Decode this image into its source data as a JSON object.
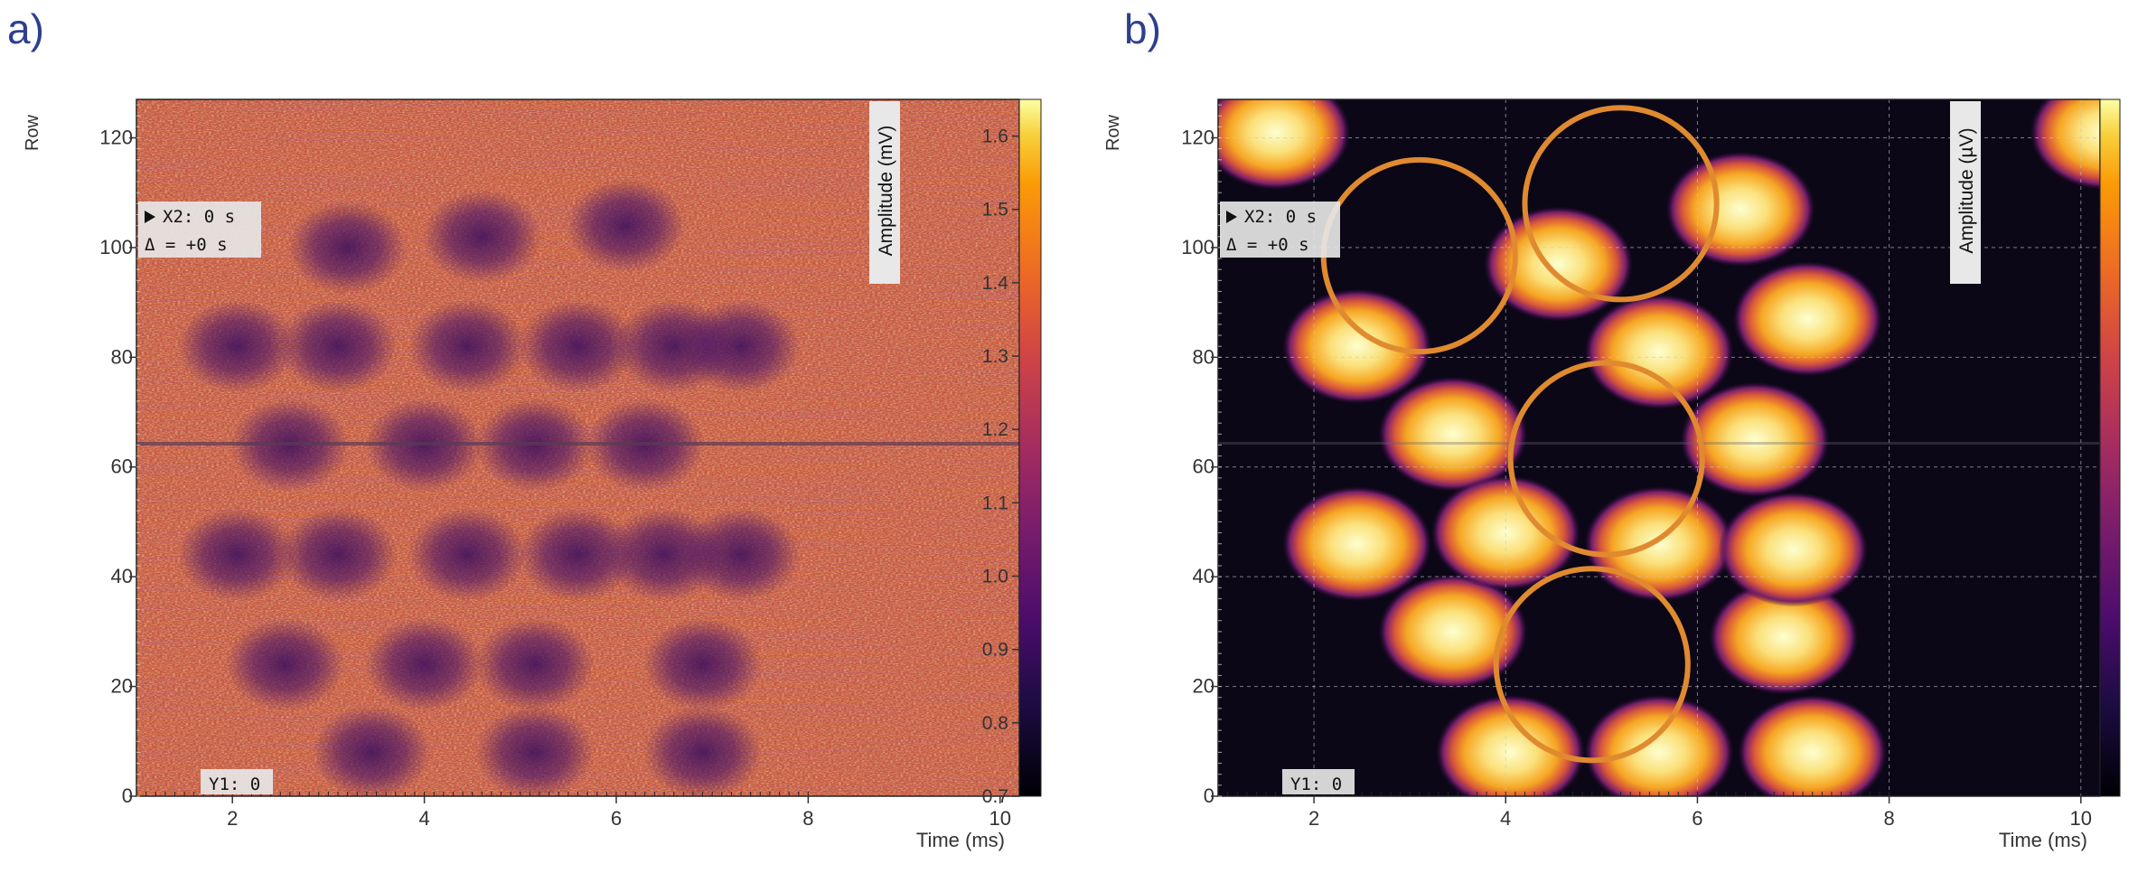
{
  "chart_data": [
    {
      "panel_label": "a)",
      "type": "heatmap",
      "xlabel": "Time (ms)",
      "ylabel": "Row",
      "colorbar_label": "Amplitude (mV)",
      "x_ticks": [
        2,
        4,
        6,
        8,
        10
      ],
      "y_ticks": [
        0,
        20,
        40,
        60,
        80,
        100,
        120
      ],
      "colorbar_ticks": [
        0.7,
        0.8,
        0.9,
        1.0,
        1.1,
        1.2,
        1.3,
        1.4,
        1.5,
        1.6
      ],
      "colorbar_tick_labels": [
        "0.7",
        "0.8",
        "0.9",
        "1.0",
        "1.1",
        "1.2",
        "1.3",
        "1.4",
        "1.5",
        "1.6"
      ],
      "xlim": [
        1,
        10.2
      ],
      "ylim": [
        0,
        127
      ],
      "zlim": [
        0.7,
        1.65
      ],
      "colormap": "inferno",
      "grid": false,
      "cursor_x_label": "X2: 0 s",
      "cursor_delta_label": "Δ = +0 s",
      "cursor_y_label": "Y1: 0",
      "spot_centers": [
        [
          6.9,
          8
        ],
        [
          5.15,
          8
        ],
        [
          3.45,
          8
        ],
        [
          2.55,
          24
        ],
        [
          4.0,
          24
        ],
        [
          5.15,
          24
        ],
        [
          6.9,
          24
        ],
        [
          2.05,
          44
        ],
        [
          3.1,
          44
        ],
        [
          4.45,
          44
        ],
        [
          5.6,
          44
        ],
        [
          6.5,
          44
        ],
        [
          7.3,
          44
        ],
        [
          2.6,
          64
        ],
        [
          4.0,
          64
        ],
        [
          5.15,
          64
        ],
        [
          6.3,
          64
        ],
        [
          2.05,
          82
        ],
        [
          3.1,
          82
        ],
        [
          4.45,
          82
        ],
        [
          5.6,
          82
        ],
        [
          6.6,
          82
        ],
        [
          7.3,
          82
        ],
        [
          3.2,
          100
        ],
        [
          4.6,
          102
        ],
        [
          6.1,
          104
        ]
      ],
      "spot_description": "dark (low amplitude) blobs"
    },
    {
      "panel_label": "b)",
      "type": "heatmap",
      "xlabel": "Time (ms)",
      "ylabel": "Row",
      "colorbar_label": "Amplitude (µV)",
      "x_ticks": [
        2,
        4,
        6,
        8,
        10
      ],
      "y_ticks": [
        0,
        20,
        40,
        60,
        80,
        100,
        120
      ],
      "xlim": [
        1,
        10.2
      ],
      "ylim": [
        0,
        127
      ],
      "colormap": "inferno",
      "grid": true,
      "cursor_x_label": "X2: 0 s",
      "cursor_delta_label": "Δ = +0 s",
      "cursor_y_label": "Y1: 0",
      "spots": [
        [
          1.6,
          121
        ],
        [
          2.45,
          82
        ],
        [
          3.45,
          66
        ],
        [
          2.45,
          46
        ],
        [
          3.45,
          30
        ],
        [
          4.05,
          8
        ],
        [
          4.0,
          48
        ],
        [
          4.55,
          97
        ],
        [
          5.6,
          81
        ],
        [
          5.6,
          46
        ],
        [
          5.6,
          8
        ],
        [
          6.45,
          107
        ],
        [
          6.6,
          65
        ],
        [
          6.9,
          29
        ],
        [
          7.15,
          87
        ],
        [
          7.0,
          45
        ],
        [
          7.2,
          8
        ],
        [
          10.25,
          121
        ]
      ],
      "circles": [
        [
          3.1,
          98.5
        ],
        [
          5.2,
          108
        ],
        [
          5.05,
          61.5
        ],
        [
          4.9,
          24
        ]
      ],
      "circle_color": "#e08a30",
      "spot_description": "bright (high amplitude) blobs; orange circles mark missing spots"
    }
  ]
}
